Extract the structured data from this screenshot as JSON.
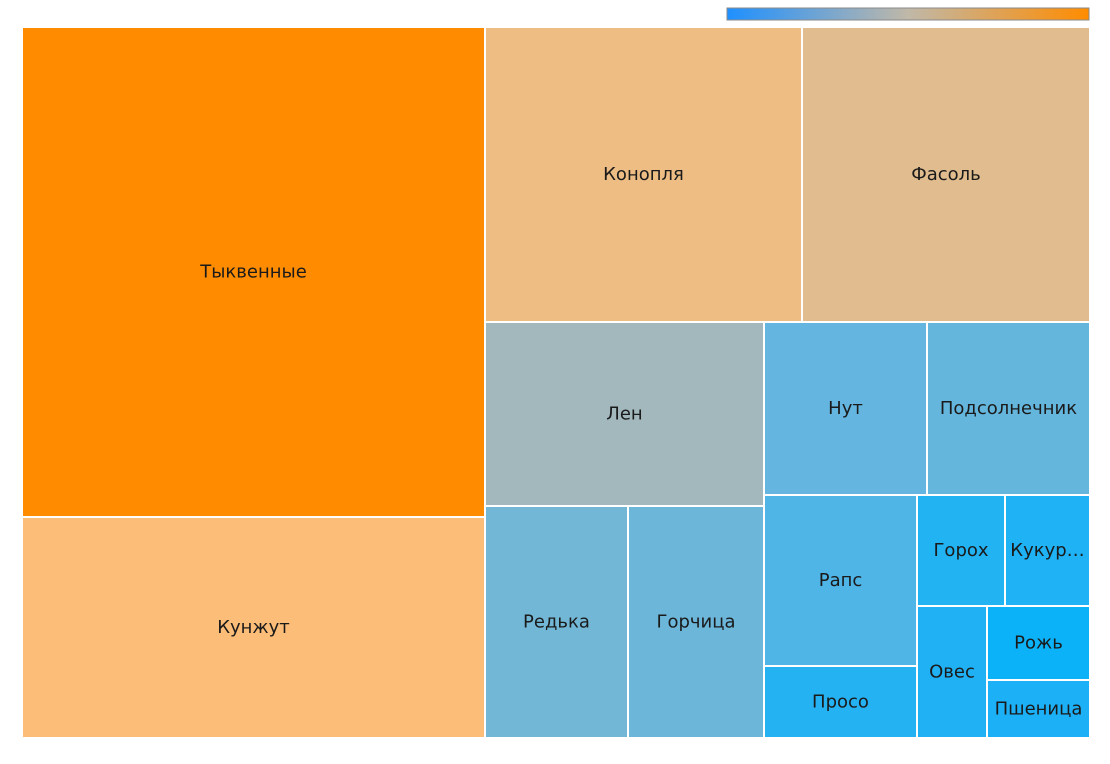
{
  "chart_data": {
    "type": "treemap",
    "title": "",
    "legend": {
      "type": "color-gradient",
      "placement": "top-right",
      "colors": [
        "#1e90ff",
        "#c0b8a8",
        "#ff8c00"
      ]
    },
    "items": [
      {
        "label": "Тыквенные",
        "value": 6730,
        "color": "#ff8c00"
      },
      {
        "label": "Кунжут",
        "value": 2080,
        "color": "#fbbd77"
      },
      {
        "label": "Конопля",
        "value": 2750,
        "color": "#edbd84"
      },
      {
        "label": "Фасоль",
        "value": 2520,
        "color": "#e0bc8e"
      },
      {
        "label": "Лен",
        "value": 1520,
        "color": "#a2b8bd"
      },
      {
        "label": "Нут",
        "value": 830,
        "color": "#64b6e0"
      },
      {
        "label": "Подсолнечник",
        "value": 820,
        "color": "#65b6dd"
      },
      {
        "label": "Редька",
        "value": 980,
        "color": "#72b7d6"
      },
      {
        "label": "Горчица",
        "value": 910,
        "color": "#6cb6da"
      },
      {
        "label": "Рапс",
        "value": 650,
        "color": "#4fb4e6"
      },
      {
        "label": "Просо",
        "value": 290,
        "color": "#25b2f2"
      },
      {
        "label": "Горох",
        "value": 290,
        "color": "#22b3f3"
      },
      {
        "label": "Кукур…",
        "value": 240,
        "color": "#1fb2f5"
      },
      {
        "label": "Овес",
        "value": 330,
        "color": "#20b1f4"
      },
      {
        "label": "Рожь",
        "value": 210,
        "color": "#0bb2f7"
      },
      {
        "label": "Пшеница",
        "value": 160,
        "color": "#1cb1f7"
      }
    ]
  }
}
